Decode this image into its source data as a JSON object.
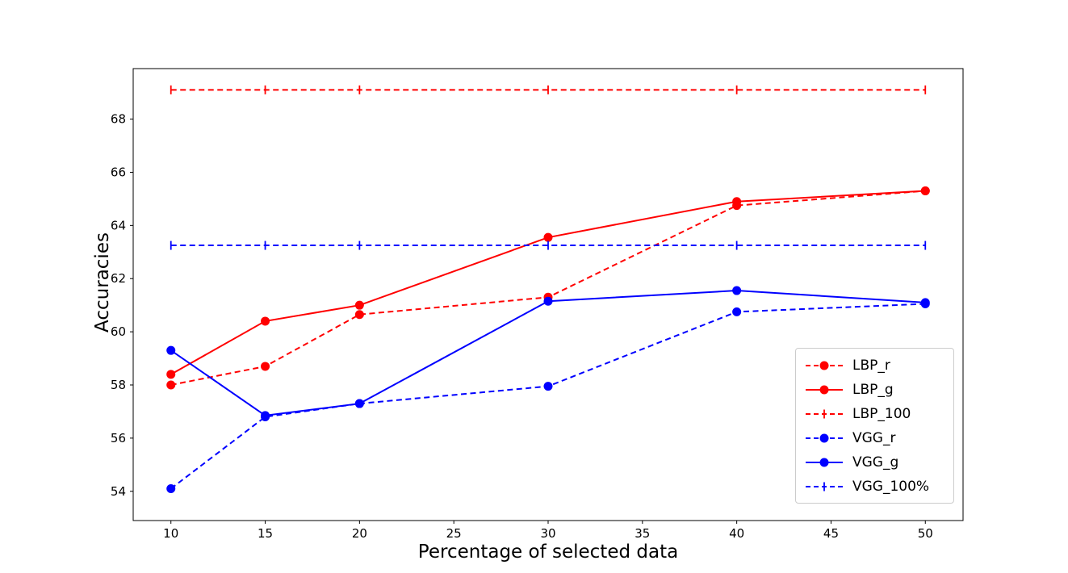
{
  "chart_data": {
    "type": "line",
    "title": "",
    "xlabel": "Percentage of selected data",
    "ylabel": "Accuracies",
    "x": [
      10,
      15,
      20,
      30,
      40,
      50
    ],
    "xticks": [
      10,
      15,
      20,
      25,
      30,
      35,
      40,
      45,
      50
    ],
    "yticks": [
      54,
      56,
      58,
      60,
      62,
      64,
      66,
      68
    ],
    "xlim": [
      8,
      52
    ],
    "ylim": [
      52.9,
      69.9
    ],
    "grid": false,
    "legend_position": "lower right",
    "colors": {
      "red": "#ff0000",
      "blue": "#0000ff",
      "axis": "#000000",
      "legend_border": "#cccccc"
    },
    "series": [
      {
        "name": "LBP_r",
        "color": "#ff0000",
        "line": "dashed",
        "marker": "circle",
        "values": [
          58.0,
          58.7,
          60.65,
          61.3,
          64.75,
          65.3
        ]
      },
      {
        "name": "LBP_g",
        "color": "#ff0000",
        "line": "solid",
        "marker": "circle",
        "values": [
          58.4,
          60.4,
          61.0,
          63.55,
          64.9,
          65.3
        ]
      },
      {
        "name": "LBP_100",
        "color": "#ff0000",
        "line": "dashed",
        "marker": "vline",
        "values": [
          69.1,
          69.1,
          69.1,
          69.1,
          69.1,
          69.1
        ]
      },
      {
        "name": "VGG_r",
        "color": "#0000ff",
        "line": "dashed",
        "marker": "circle",
        "values": [
          54.1,
          56.8,
          57.3,
          57.95,
          60.75,
          61.05
        ]
      },
      {
        "name": "VGG_g",
        "color": "#0000ff",
        "line": "solid",
        "marker": "circle",
        "values": [
          59.3,
          56.85,
          57.3,
          61.15,
          61.55,
          61.1
        ]
      },
      {
        "name": "VGG_100%",
        "color": "#0000ff",
        "line": "dashed",
        "marker": "vline",
        "values": [
          63.25,
          63.25,
          63.25,
          63.25,
          63.25,
          63.25
        ]
      }
    ]
  }
}
